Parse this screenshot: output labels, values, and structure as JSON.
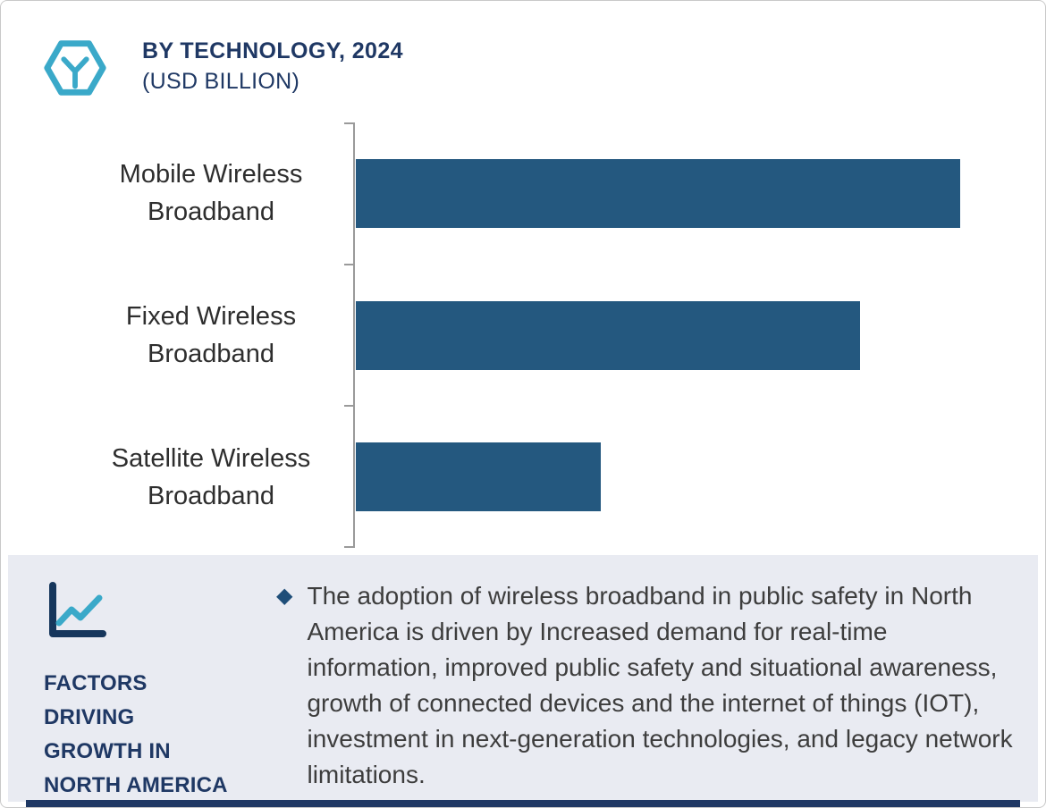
{
  "header": {
    "title": "BY TECHNOLOGY, 2024",
    "subtitle": "(USD BILLION)",
    "logo_icon": "hexagon-brand-icon"
  },
  "chart_data": {
    "type": "bar",
    "orientation": "horizontal",
    "title": "BY TECHNOLOGY, 2024",
    "subtitle": "(USD BILLION)",
    "categories": [
      "Mobile Wireless Broadband",
      "Fixed Wireless Broadband",
      "Satellite Wireless Broadband"
    ],
    "values": [
      100,
      83.5,
      40.5
    ],
    "value_note": "no numeric axis or data labels shown in image; values are relative bar lengths with the longest bar normalized to 100",
    "xlim": [
      0,
      112
    ],
    "bar_color": "#24587F",
    "axis_color": "#9A9A9A",
    "grid": false,
    "legend": "none"
  },
  "factors": {
    "icon": "line-chart-icon",
    "heading_lines": [
      "FACTORS DRIVING",
      "GROWTH IN",
      "NORTH AMERICA"
    ],
    "bullet_glyph": "◆",
    "text": "The adoption of wireless broadband in public safety in North America is driven by Increased demand for real-time information, improved public safety and situational awareness, growth of connected devices and the internet of things (IOT), investment in next-generation technologies, and legacy network limitations."
  },
  "colors": {
    "accent_teal": "#3AA9C9",
    "navy": "#1F3864",
    "bar_blue": "#24587F",
    "panel_bg": "#E9EBF2",
    "text_dark": "#3D3D3D"
  }
}
